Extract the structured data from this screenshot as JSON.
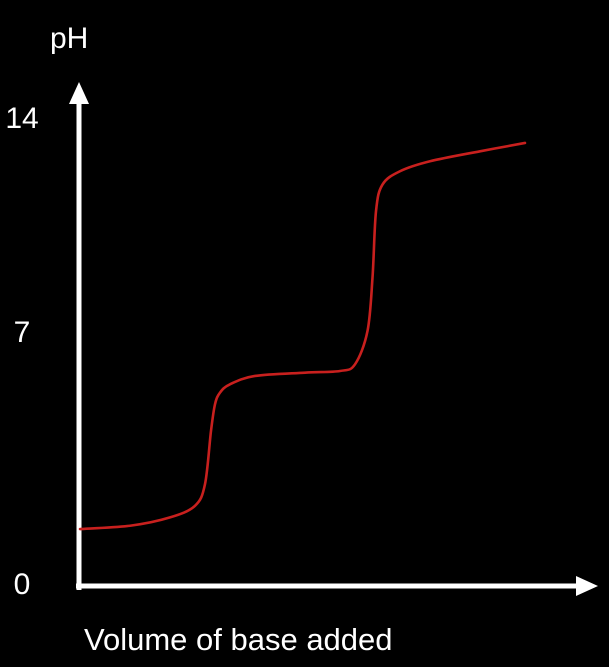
{
  "chart_data": {
    "type": "line",
    "title": "",
    "xlabel": "Volume of base added",
    "ylabel": "pH",
    "ylim": [
      0,
      14
    ],
    "xlim": [
      0,
      10
    ],
    "yticks": [
      {
        "value": 0,
        "label": "0"
      },
      {
        "value": 7,
        "label": "7"
      },
      {
        "value": 14,
        "label": "14"
      }
    ],
    "grid": false,
    "legend": "none",
    "series": [
      {
        "color": "#c8201e",
        "x": [
          0.0,
          1.0,
          1.8,
          2.3,
          2.5,
          2.62,
          2.7,
          2.8,
          3.0,
          3.5,
          4.5,
          5.2,
          5.5,
          5.75,
          5.85,
          5.92,
          6.05,
          6.4,
          7.0,
          8.0,
          8.9
        ],
        "y": [
          1.65,
          1.75,
          2.0,
          2.35,
          3.0,
          4.6,
          5.4,
          5.75,
          6.0,
          6.25,
          6.35,
          6.4,
          6.6,
          7.6,
          9.2,
          11.2,
          12.0,
          12.4,
          12.7,
          13.0,
          13.25
        ]
      }
    ]
  }
}
